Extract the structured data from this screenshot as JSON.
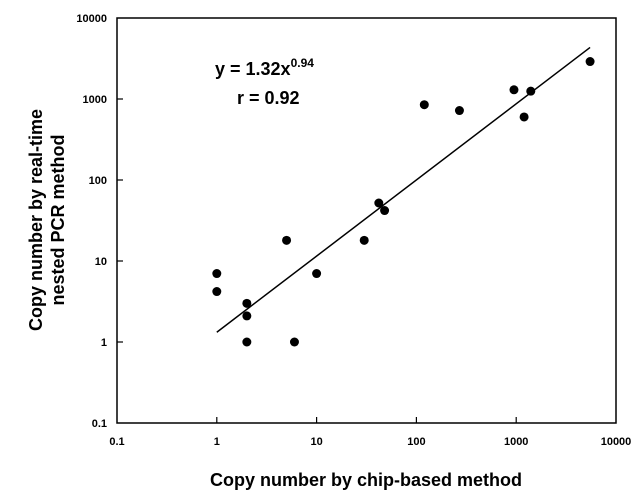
{
  "chart_data": {
    "type": "scatter",
    "xscale": "log",
    "yscale": "log",
    "xlim": [
      0.1,
      10000
    ],
    "ylim": [
      0.1,
      10000
    ],
    "xticks": [
      "0.1",
      "1",
      "10",
      "100",
      "1000",
      "10000"
    ],
    "yticks": [
      "0.1",
      "1",
      "10",
      "100",
      "1000",
      "10000"
    ],
    "xlabel": "Copy number by chip-based method",
    "ylabel_line1": "Copy number by real-time",
    "ylabel_line2": "nested PCR method",
    "grid": false,
    "annotation": {
      "equation_prefix": "y = 1.32x",
      "equation_exponent": "0.94",
      "r_text": "r = 0.92"
    },
    "fit": {
      "a": 1.32,
      "b": 0.94,
      "x_range": [
        1,
        5500
      ]
    },
    "points": [
      {
        "x": 1,
        "y": 7
      },
      {
        "x": 1,
        "y": 4.2
      },
      {
        "x": 2,
        "y": 3
      },
      {
        "x": 2,
        "y": 2.1
      },
      {
        "x": 2,
        "y": 1
      },
      {
        "x": 5,
        "y": 18
      },
      {
        "x": 6,
        "y": 1
      },
      {
        "x": 10,
        "y": 7
      },
      {
        "x": 30,
        "y": 18
      },
      {
        "x": 42,
        "y": 52
      },
      {
        "x": 48,
        "y": 42
      },
      {
        "x": 120,
        "y": 850
      },
      {
        "x": 270,
        "y": 720
      },
      {
        "x": 950,
        "y": 1300
      },
      {
        "x": 1200,
        "y": 600
      },
      {
        "x": 1400,
        "y": 1250
      },
      {
        "x": 5500,
        "y": 2900
      }
    ]
  }
}
